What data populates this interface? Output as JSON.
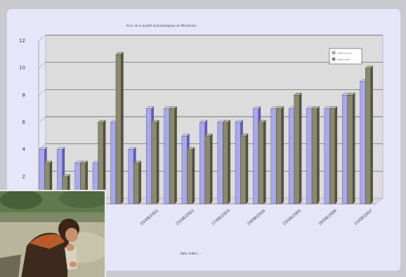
{
  "chart_data": {
    "type": "bar",
    "title": "Évol. de la qualité hydrobiologique du Merdanson",
    "xlabel": "Date, Indice, ...",
    "ylabel": "",
    "ylim": [
      0,
      12
    ],
    "yticks": [
      2,
      4,
      6,
      8,
      10,
      12
    ],
    "grid": true,
    "legend_position": "top-right",
    "series": [
      {
        "name": "Station amont",
        "color": "#a8a8f0",
        "values": [
          4,
          4,
          3,
          3,
          6,
          4,
          7,
          7,
          5,
          6,
          6,
          6,
          7,
          7,
          7,
          7,
          7,
          8,
          9
        ]
      },
      {
        "name": "Station aval",
        "color": "#8a8a6c",
        "values": [
          3,
          2,
          3,
          6,
          11,
          3,
          6,
          7,
          4,
          5,
          6,
          5,
          6,
          7,
          8,
          7,
          7,
          8,
          10
        ]
      }
    ],
    "tick_labels": [
      {
        "label": "05/08/2001",
        "index": 6.5
      },
      {
        "label": "25/08/2002",
        "index": 8.5
      },
      {
        "label": "17/08/2003",
        "index": 10.5
      },
      {
        "label": "19/08/2004",
        "index": 12.5
      },
      {
        "label": "23/08/2005",
        "index": 14.5
      },
      {
        "label": "26/08/2006",
        "index": 16.5
      },
      {
        "label": "15/08/2007",
        "index": 18.5
      }
    ]
  },
  "video_overlay": {
    "icon": "video-thumbnail-person"
  }
}
